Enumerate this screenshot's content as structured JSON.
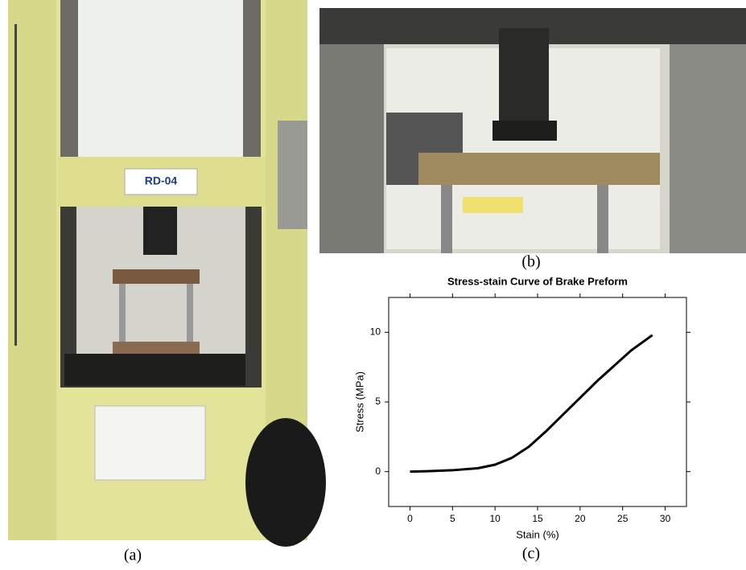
{
  "figure": {
    "captions": [
      "(a)",
      "(b)",
      "(c)"
    ],
    "photo_label": "RD-04"
  },
  "chart_data": {
    "type": "line",
    "title": "Stress-stain Curve of Brake Preform",
    "x_label": "Stain (%)",
    "y_label": "Stress (MPa)",
    "x": [
      0,
      2,
      5,
      8,
      10,
      12,
      14,
      16,
      18,
      20,
      22,
      24,
      26,
      28.5
    ],
    "values": [
      0,
      0.03,
      0.1,
      0.25,
      0.5,
      1.0,
      1.8,
      2.9,
      4.1,
      5.3,
      6.5,
      7.6,
      8.7,
      9.8
    ],
    "color": "#000000",
    "xlim": [
      -2.5,
      32.5
    ],
    "ylim": [
      -2.5,
      12.5
    ],
    "xticks": [
      0,
      5,
      10,
      15,
      20,
      25,
      30
    ],
    "yticks": [
      0,
      5,
      10
    ]
  }
}
